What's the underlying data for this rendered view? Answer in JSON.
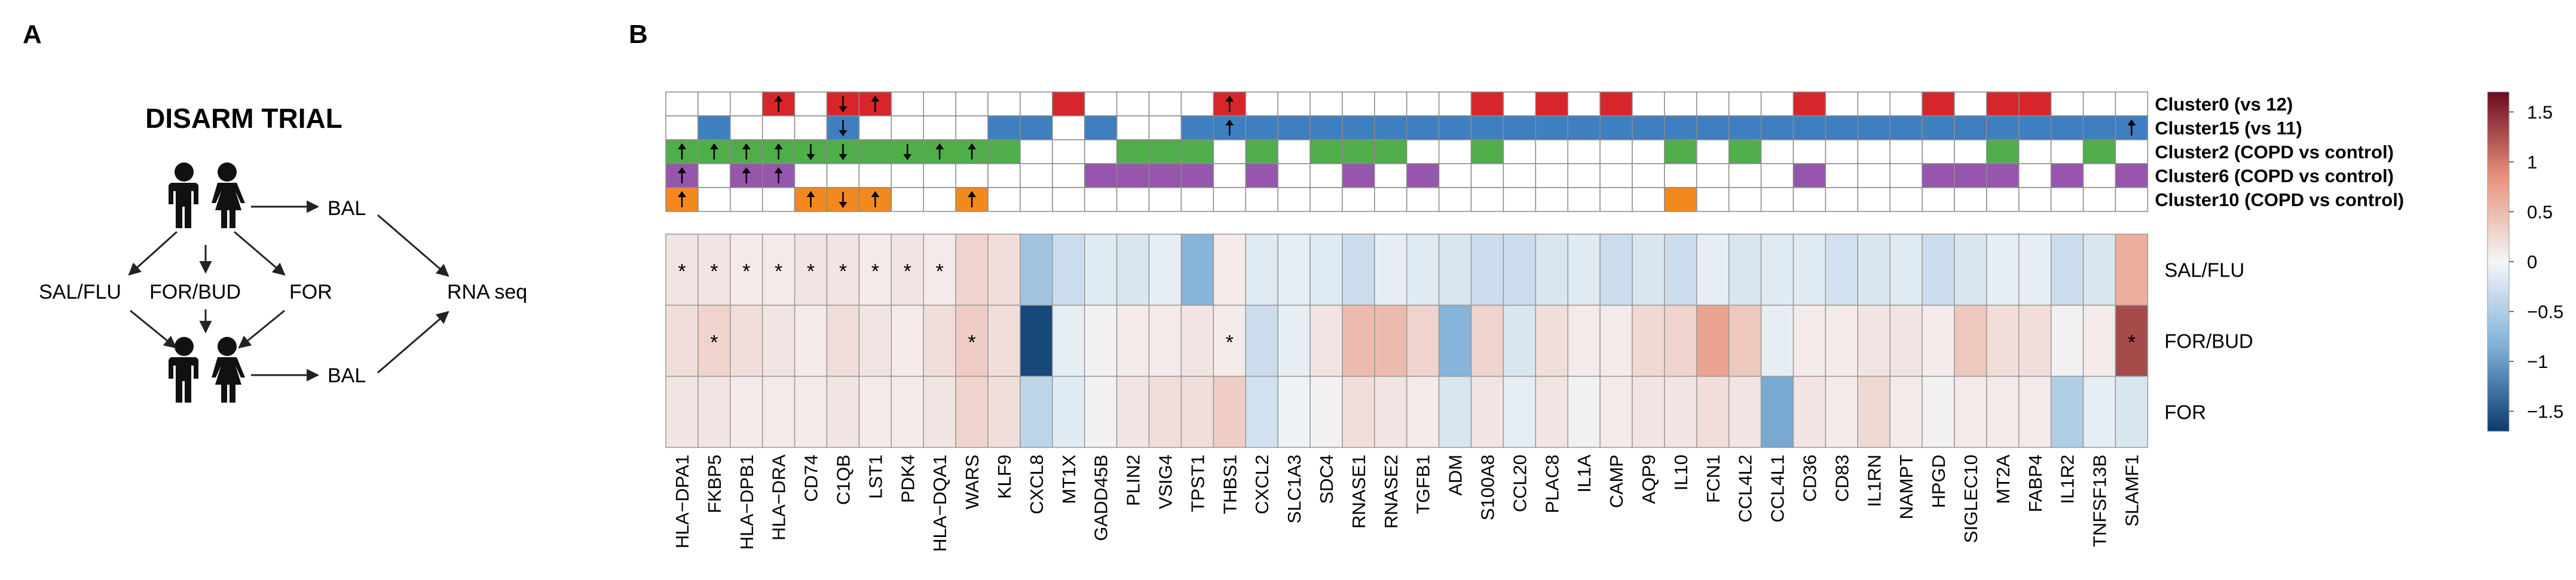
{
  "panel_a": {
    "label": "A",
    "title": "DISARM TRIAL",
    "nodes": {
      "bal_top": "BAL",
      "bal_bottom": "BAL",
      "rna_seq": "RNA seq",
      "arms": [
        "SAL/FLU",
        "FOR/BUD",
        "FOR"
      ]
    }
  },
  "panel_b": {
    "label": "B",
    "star": "*",
    "genes": [
      "HLA−DPA1",
      "FKBP5",
      "HLA−DPB1",
      "HLA−DRA",
      "CD74",
      "C1QB",
      "LST1",
      "PDK4",
      "HLA−DQA1",
      "WARS",
      "KLF9",
      "CXCL8",
      "MT1X",
      "GADD45B",
      "PLIN2",
      "VSIG4",
      "TPST1",
      "THBS1",
      "CXCL2",
      "SLC1A3",
      "SDC4",
      "RNASE1",
      "RNASE2",
      "TGFB1",
      "ADM",
      "S100A8",
      "CCL20",
      "PLAC8",
      "IL1A",
      "CAMP",
      "AQP9",
      "IL10",
      "FCN1",
      "CCL4L2",
      "CCL4L1",
      "CD36",
      "CD83",
      "IL1RN",
      "NAMPT",
      "HPGD",
      "SIGLEC10",
      "MT2A",
      "FABP4",
      "IL1R2",
      "TNFSF13B",
      "SLAMF1"
    ],
    "clusters": [
      {
        "name": "Cluster0 (vs 12)",
        "color": "#d7262b",
        "cells": [
          3,
          5,
          6,
          12,
          17,
          25,
          27,
          29,
          35,
          39,
          41,
          42
        ],
        "arrows": {
          "3": "up",
          "5": "down",
          "6": "up",
          "17": "up"
        }
      },
      {
        "name": "Cluster15 (vs 11)",
        "color": "#3e7fc2",
        "cells": [
          1,
          5,
          10,
          11,
          13,
          16,
          17,
          18,
          19,
          20,
          21,
          22,
          23,
          24,
          25,
          26,
          27,
          28,
          29,
          30,
          31,
          32,
          33,
          34,
          35,
          36,
          37,
          38,
          39,
          40,
          41,
          42,
          43,
          44,
          45
        ],
        "arrows": {
          "5": "down",
          "17": "up",
          "45": "up"
        }
      },
      {
        "name": "Cluster2 (COPD vs control)",
        "color": "#4fae4a",
        "cells": [
          0,
          1,
          2,
          3,
          4,
          5,
          6,
          7,
          8,
          9,
          10,
          14,
          15,
          16,
          18,
          20,
          21,
          22,
          25,
          31,
          33,
          41,
          44
        ],
        "arrows": {
          "0": "up",
          "1": "up",
          "2": "up",
          "3": "up",
          "4": "down",
          "5": "down",
          "7": "down",
          "8": "up",
          "9": "up"
        }
      },
      {
        "name": "Cluster6 (COPD vs control)",
        "color": "#9656ad",
        "cells": [
          0,
          2,
          3,
          13,
          14,
          15,
          16,
          18,
          21,
          23,
          35,
          39,
          40,
          41,
          43,
          45
        ],
        "arrows": {
          "0": "up",
          "2": "up",
          "3": "up"
        }
      },
      {
        "name": "Cluster10 (COPD vs control)",
        "color": "#f2891f",
        "cells": [
          0,
          4,
          5,
          6,
          9,
          31
        ],
        "arrows": {
          "0": "up",
          "4": "up",
          "5": "down",
          "6": "up",
          "9": "up"
        }
      }
    ],
    "rows": [
      "SAL/FLU",
      "FOR/BUD",
      "FOR"
    ],
    "chart_data": {
      "type": "heatmap",
      "x": [
        "HLA−DPA1",
        "FKBP5",
        "HLA−DPB1",
        "HLA−DRA",
        "CD74",
        "C1QB",
        "LST1",
        "PDK4",
        "HLA−DQA1",
        "WARS",
        "KLF9",
        "CXCL8",
        "MT1X",
        "GADD45B",
        "PLIN2",
        "VSIG4",
        "TPST1",
        "THBS1",
        "CXCL2",
        "SLC1A3",
        "SDC4",
        "RNASE1",
        "RNASE2",
        "TGFB1",
        "ADM",
        "S100A8",
        "CCL20",
        "PLAC8",
        "IL1A",
        "CAMP",
        "AQP9",
        "IL10",
        "FCN1",
        "CCL4L2",
        "CCL4L1",
        "CD36",
        "CD83",
        "IL1RN",
        "NAMPT",
        "HPGD",
        "SIGLEC10",
        "MT2A",
        "FABP4",
        "IL1R2",
        "TNFSF13B",
        "SLAMF1"
      ],
      "y": [
        "SAL/FLU",
        "FOR/BUD",
        "FOR"
      ],
      "values": [
        [
          0.15,
          0.15,
          0.1,
          0.1,
          0.15,
          0.15,
          0.1,
          0.15,
          0.1,
          0.3,
          0.2,
          -0.6,
          -0.3,
          -0.15,
          -0.2,
          -0.1,
          -0.8,
          0.1,
          -0.15,
          -0.1,
          -0.15,
          -0.3,
          -0.1,
          -0.15,
          -0.2,
          -0.3,
          -0.3,
          -0.2,
          -0.15,
          -0.3,
          -0.2,
          -0.3,
          -0.1,
          -0.2,
          -0.15,
          -0.15,
          -0.25,
          -0.2,
          -0.15,
          -0.3,
          -0.2,
          -0.1,
          -0.1,
          -0.3,
          -0.2,
          0.6
        ],
        [
          0.2,
          0.3,
          0.2,
          0.15,
          0.1,
          0.2,
          0.15,
          0.1,
          0.2,
          0.35,
          0.2,
          -1.6,
          -0.1,
          0.05,
          0.1,
          0.1,
          0.15,
          0.1,
          -0.3,
          -0.1,
          0.15,
          0.5,
          0.5,
          0.3,
          -0.8,
          0.3,
          -0.2,
          0.2,
          0.1,
          0.1,
          0.25,
          0.3,
          0.7,
          0.4,
          -0.1,
          0.1,
          0.1,
          0.15,
          0.15,
          0.1,
          0.4,
          0.2,
          0.2,
          0.05,
          0.1,
          1.3
        ],
        [
          0.15,
          0.15,
          0.1,
          0.1,
          0.1,
          0.15,
          0.1,
          0.1,
          0.15,
          0.3,
          0.2,
          -0.4,
          -0.15,
          0.05,
          0.15,
          0.2,
          0.2,
          0.35,
          -0.25,
          -0.05,
          0.05,
          0.2,
          0.15,
          0.1,
          -0.2,
          0.15,
          -0.1,
          0.15,
          0.05,
          0.1,
          0.15,
          0.15,
          0.2,
          0.15,
          -0.9,
          0.15,
          0.1,
          0.25,
          0.1,
          0.05,
          0.1,
          0.1,
          0.1,
          -0.5,
          -0.1,
          -0.2
        ]
      ],
      "significant": {
        "SAL/FLU": [
          0,
          1,
          2,
          3,
          4,
          5,
          6,
          7,
          8
        ],
        "FOR/BUD": [
          1,
          9,
          17,
          45
        ]
      },
      "colorbar": {
        "min": -1.7,
        "max": 1.7,
        "ticks": [
          1.5,
          1,
          0.5,
          0,
          -0.5,
          -1,
          -1.5
        ],
        "tick_labels": [
          "1.5",
          "1",
          "0.5",
          "0",
          "−0.5",
          "−1",
          "−1.5"
        ],
        "low_color": "#0b3a6e",
        "mid_color": "#f4f6f8",
        "high_color": "#6b0a20"
      }
    }
  }
}
